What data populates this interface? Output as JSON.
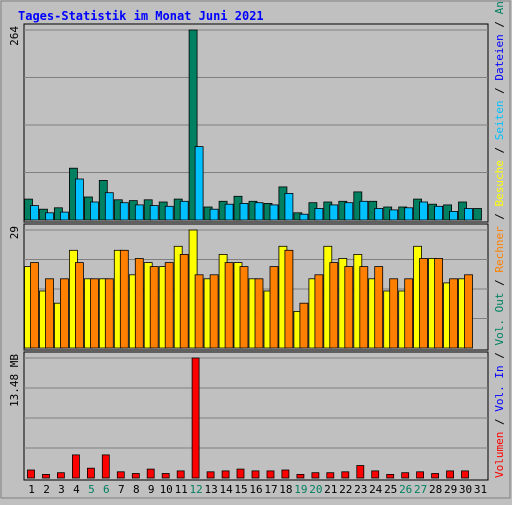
{
  "chart_data": [
    {
      "type": "bar",
      "title": "Tages-Statistik im Monat Juni 2021",
      "categories": [
        "1",
        "2",
        "3",
        "4",
        "5",
        "6",
        "7",
        "8",
        "9",
        "10",
        "11",
        "12",
        "13",
        "14",
        "15",
        "16",
        "17",
        "18",
        "19",
        "20",
        "21",
        "22",
        "23",
        "24",
        "25",
        "26",
        "27",
        "28",
        "29",
        "30",
        "31"
      ],
      "highlighted_categories": [
        "5",
        "6",
        "12",
        "19",
        "20",
        "26",
        "27"
      ],
      "ylabel": "264",
      "ylim": [
        0,
        264
      ],
      "grid": true,
      "series": [
        {
          "name": "Anfragen",
          "color": "#008060",
          "values": [
            29,
            15,
            17,
            72,
            32,
            55,
            28,
            27,
            28,
            25,
            29,
            264,
            18,
            26,
            33,
            26,
            23,
            46,
            10,
            24,
            25,
            26,
            39,
            26,
            18,
            18,
            29,
            22,
            21,
            25,
            16
          ]
        },
        {
          "name": "Dateien",
          "color": "#00c0ff",
          "values": [
            20,
            10,
            11,
            57,
            25,
            38,
            24,
            21,
            20,
            19,
            26,
            102,
            15,
            22,
            23,
            24,
            21,
            37,
            8,
            16,
            21,
            24,
            26,
            16,
            14,
            17,
            25,
            19,
            12,
            16,
            0
          ]
        }
      ],
      "side_labels": [
        "Seiten",
        "Dateien",
        "Anfragen"
      ]
    },
    {
      "type": "bar",
      "categories": [
        "1",
        "2",
        "3",
        "4",
        "5",
        "6",
        "7",
        "8",
        "9",
        "10",
        "11",
        "12",
        "13",
        "14",
        "15",
        "16",
        "17",
        "18",
        "19",
        "20",
        "21",
        "22",
        "23",
        "24",
        "25",
        "26",
        "27",
        "28",
        "29",
        "30",
        "31"
      ],
      "ylabel": "29",
      "ylim": [
        0,
        29
      ],
      "grid": true,
      "series": [
        {
          "name": "Besuche",
          "color": "#ffff00",
          "values": [
            20,
            14,
            11,
            24,
            17,
            17,
            24,
            18,
            21,
            20,
            25,
            29,
            17,
            23,
            21,
            17,
            14,
            25,
            9,
            17,
            25,
            22,
            23,
            17,
            14,
            14,
            25,
            22,
            16,
            17,
            0
          ]
        },
        {
          "name": "Rechner",
          "color": "#ff8000",
          "values": [
            21,
            17,
            17,
            21,
            17,
            17,
            24,
            22,
            20,
            21,
            23,
            18,
            18,
            21,
            20,
            17,
            20,
            24,
            11,
            18,
            21,
            20,
            20,
            20,
            17,
            17,
            22,
            22,
            17,
            18,
            0
          ]
        }
      ],
      "side_labels": [
        "Besuche",
        "Rechner",
        "Vol. Out"
      ]
    },
    {
      "type": "bar",
      "categories": [
        "1",
        "2",
        "3",
        "4",
        "5",
        "6",
        "7",
        "8",
        "9",
        "10",
        "11",
        "12",
        "13",
        "14",
        "15",
        "16",
        "17",
        "18",
        "19",
        "20",
        "21",
        "22",
        "23",
        "24",
        "25",
        "26",
        "27",
        "28",
        "29",
        "30",
        "31"
      ],
      "ylabel": "13.48 MB",
      "ylim": [
        0,
        13.48
      ],
      "grid": true,
      "series": [
        {
          "name": "Volumen",
          "color": "#ff0000",
          "values": [
            0.9,
            0.4,
            0.6,
            2.6,
            1.1,
            2.6,
            0.7,
            0.5,
            1.0,
            0.5,
            0.8,
            13.48,
            0.7,
            0.8,
            1.0,
            0.8,
            0.8,
            0.9,
            0.4,
            0.6,
            0.6,
            0.7,
            1.4,
            0.8,
            0.4,
            0.6,
            0.7,
            0.5,
            0.8,
            0.8,
            0
          ]
        }
      ],
      "side_labels": [
        "Vol. In",
        "Volumen"
      ]
    }
  ]
}
